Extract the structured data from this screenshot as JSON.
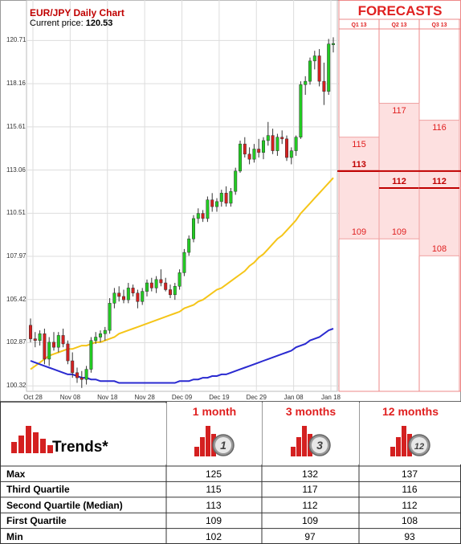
{
  "chart_data": {
    "type": "candlestick",
    "title": "EUR/JPY Daily Chart",
    "subtitle_label": "Current price:",
    "current_price": "120.53",
    "y_ticks": [
      "120.71",
      "118.16",
      "115.61",
      "113.06",
      "110.51",
      "107.97",
      "105.42",
      "102.87",
      "100.32"
    ],
    "y_tick_values": [
      120.71,
      118.16,
      115.61,
      113.06,
      110.51,
      107.97,
      105.42,
      102.87,
      100.32
    ],
    "ylim": [
      100.0,
      121.2
    ],
    "x_ticks": [
      "Oct 28",
      "Nov 08",
      "Nov 18",
      "Nov 28",
      "Dec 09",
      "Dec 19",
      "Dec 29",
      "Jan 08",
      "Jan 18"
    ],
    "candles": [
      [
        103.9,
        104.3,
        102.9,
        103.1
      ],
      [
        103.1,
        103.5,
        102.6,
        103.0
      ],
      [
        103.0,
        103.6,
        102.7,
        103.4
      ],
      [
        103.4,
        103.7,
        101.6,
        101.9
      ],
      [
        101.9,
        103.2,
        101.5,
        102.9
      ],
      [
        102.9,
        103.5,
        102.4,
        102.6
      ],
      [
        102.6,
        103.5,
        102.3,
        103.3
      ],
      [
        103.3,
        103.7,
        102.6,
        102.8
      ],
      [
        102.8,
        103.0,
        101.6,
        101.8
      ],
      [
        101.8,
        102.3,
        100.8,
        101.1
      ],
      [
        101.1,
        101.4,
        100.5,
        100.8
      ],
      [
        100.8,
        101.2,
        100.2,
        100.7
      ],
      [
        100.7,
        101.5,
        100.4,
        101.3
      ],
      [
        101.3,
        103.2,
        101.1,
        103.0
      ],
      [
        103.0,
        103.5,
        102.8,
        103.2
      ],
      [
        103.2,
        103.6,
        102.9,
        103.4
      ],
      [
        103.4,
        103.8,
        103.0,
        103.6
      ],
      [
        103.6,
        105.5,
        103.4,
        105.2
      ],
      [
        105.2,
        106.1,
        104.9,
        105.8
      ],
      [
        105.8,
        106.2,
        105.3,
        105.6
      ],
      [
        105.6,
        106.0,
        105.2,
        105.4
      ],
      [
        105.4,
        106.4,
        105.2,
        106.1
      ],
      [
        106.1,
        106.3,
        105.6,
        105.8
      ],
      [
        105.8,
        106.0,
        104.9,
        105.3
      ],
      [
        105.3,
        106.1,
        105.1,
        105.9
      ],
      [
        105.9,
        106.6,
        105.6,
        106.4
      ],
      [
        106.4,
        106.7,
        105.9,
        106.1
      ],
      [
        106.1,
        106.8,
        105.8,
        106.6
      ],
      [
        106.6,
        107.2,
        106.2,
        106.4
      ],
      [
        106.4,
        106.7,
        105.9,
        106.0
      ],
      [
        106.0,
        106.3,
        105.5,
        105.7
      ],
      [
        105.7,
        106.4,
        105.4,
        106.2
      ],
      [
        106.2,
        107.2,
        106.0,
        107.0
      ],
      [
        107.0,
        108.4,
        106.8,
        108.2
      ],
      [
        108.2,
        109.2,
        108.0,
        109.0
      ],
      [
        109.0,
        110.4,
        108.8,
        110.2
      ],
      [
        110.2,
        110.8,
        109.9,
        110.5
      ],
      [
        110.5,
        110.7,
        110.0,
        110.2
      ],
      [
        110.2,
        111.5,
        110.0,
        111.3
      ],
      [
        111.3,
        111.7,
        110.6,
        110.9
      ],
      [
        110.9,
        111.4,
        110.6,
        111.2
      ],
      [
        111.2,
        111.9,
        110.9,
        111.7
      ],
      [
        111.7,
        112.1,
        110.9,
        111.1
      ],
      [
        111.1,
        112.0,
        110.9,
        111.8
      ],
      [
        111.8,
        113.2,
        111.6,
        113.0
      ],
      [
        113.0,
        114.8,
        112.9,
        114.6
      ],
      [
        114.6,
        115.0,
        113.8,
        114.0
      ],
      [
        114.0,
        114.4,
        113.4,
        113.7
      ],
      [
        113.7,
        114.6,
        113.5,
        114.3
      ],
      [
        114.3,
        114.9,
        113.8,
        114.1
      ],
      [
        114.1,
        115.0,
        113.7,
        114.8
      ],
      [
        114.8,
        115.9,
        114.5,
        115.1
      ],
      [
        115.1,
        115.5,
        114.0,
        114.2
      ],
      [
        114.2,
        115.2,
        113.9,
        115.0
      ],
      [
        115.0,
        115.4,
        114.6,
        114.9
      ],
      [
        114.9,
        115.1,
        113.6,
        113.8
      ],
      [
        113.8,
        114.4,
        113.4,
        114.2
      ],
      [
        114.2,
        115.1,
        113.9,
        115.0
      ],
      [
        115.0,
        118.3,
        114.9,
        118.1
      ],
      [
        118.1,
        118.6,
        117.5,
        118.3
      ],
      [
        118.3,
        119.7,
        118.1,
        119.5
      ],
      [
        119.5,
        120.1,
        119.0,
        119.8
      ],
      [
        119.8,
        120.2,
        118.0,
        118.3
      ],
      [
        118.3,
        119.4,
        116.9,
        117.7
      ],
      [
        117.7,
        120.8,
        117.5,
        120.5
      ],
      [
        120.5,
        120.9,
        120.0,
        120.53
      ]
    ],
    "series": [
      {
        "name": "",
        "color": "#f5c518",
        "values": [
          101.3,
          101.5,
          101.7,
          101.9,
          102.1,
          102.2,
          102.3,
          102.4,
          102.5,
          102.5,
          102.6,
          102.7,
          102.7,
          102.8,
          102.9,
          102.9,
          103.0,
          103.1,
          103.2,
          103.4,
          103.5,
          103.6,
          103.7,
          103.8,
          103.9,
          104.0,
          104.1,
          104.2,
          104.3,
          104.4,
          104.5,
          104.6,
          104.7,
          104.9,
          105.0,
          105.1,
          105.3,
          105.4,
          105.6,
          105.8,
          106.0,
          106.1,
          106.3,
          106.5,
          106.7,
          106.9,
          107.1,
          107.4,
          107.6,
          107.9,
          108.1,
          108.4,
          108.7,
          109.0,
          109.2,
          109.5,
          109.8,
          110.1,
          110.5,
          110.8,
          111.1,
          111.4,
          111.7,
          112.0,
          112.3,
          112.6
        ]
      },
      {
        "name": "",
        "color": "#2a2ad0",
        "values": [
          101.8,
          101.7,
          101.6,
          101.5,
          101.4,
          101.3,
          101.2,
          101.1,
          101.0,
          101.0,
          100.9,
          100.8,
          100.8,
          100.7,
          100.7,
          100.6,
          100.6,
          100.6,
          100.6,
          100.5,
          100.5,
          100.5,
          100.5,
          100.5,
          100.5,
          100.5,
          100.5,
          100.5,
          100.5,
          100.5,
          100.5,
          100.5,
          100.6,
          100.6,
          100.6,
          100.7,
          100.7,
          100.8,
          100.8,
          100.9,
          100.9,
          101.0,
          101.0,
          101.1,
          101.2,
          101.3,
          101.4,
          101.5,
          101.6,
          101.7,
          101.8,
          101.9,
          102.0,
          102.1,
          102.2,
          102.3,
          102.4,
          102.6,
          102.7,
          102.8,
          103.0,
          103.1,
          103.2,
          103.4,
          103.6,
          103.7
        ]
      }
    ],
    "forecasts": {
      "title": "FORECASTS",
      "quarters": [
        {
          "label": "Q1 13",
          "q3": 115,
          "median": 113,
          "q1": 109
        },
        {
          "label": "Q2 13",
          "q3": 117,
          "median": 112,
          "q1": 109
        },
        {
          "label": "Q3 13",
          "q3": 116,
          "median": 112,
          "q1": 108
        }
      ]
    },
    "colors": {
      "bull": "#22cc22",
      "bear": "#d42020",
      "grid": "#dddddd",
      "band": "#fde0e0",
      "accent": "#e02020",
      "median_line": "#c00000"
    }
  },
  "trends": {
    "label": "Trends*",
    "columns": [
      {
        "label": "1 month",
        "badge": "1"
      },
      {
        "label": "3 months",
        "badge": "3"
      },
      {
        "label": "12 months",
        "badge": "12"
      }
    ],
    "rows": [
      {
        "name": "Max",
        "values": [
          "125",
          "132",
          "137"
        ]
      },
      {
        "name": "Third Quartile",
        "values": [
          "115",
          "117",
          "116"
        ]
      },
      {
        "name": "Second Quartile (Median)",
        "values": [
          "113",
          "112",
          "112"
        ]
      },
      {
        "name": "First Quartile",
        "values": [
          "109",
          "109",
          "108"
        ]
      },
      {
        "name": "Min",
        "values": [
          "102",
          "97",
          "93"
        ]
      }
    ]
  }
}
